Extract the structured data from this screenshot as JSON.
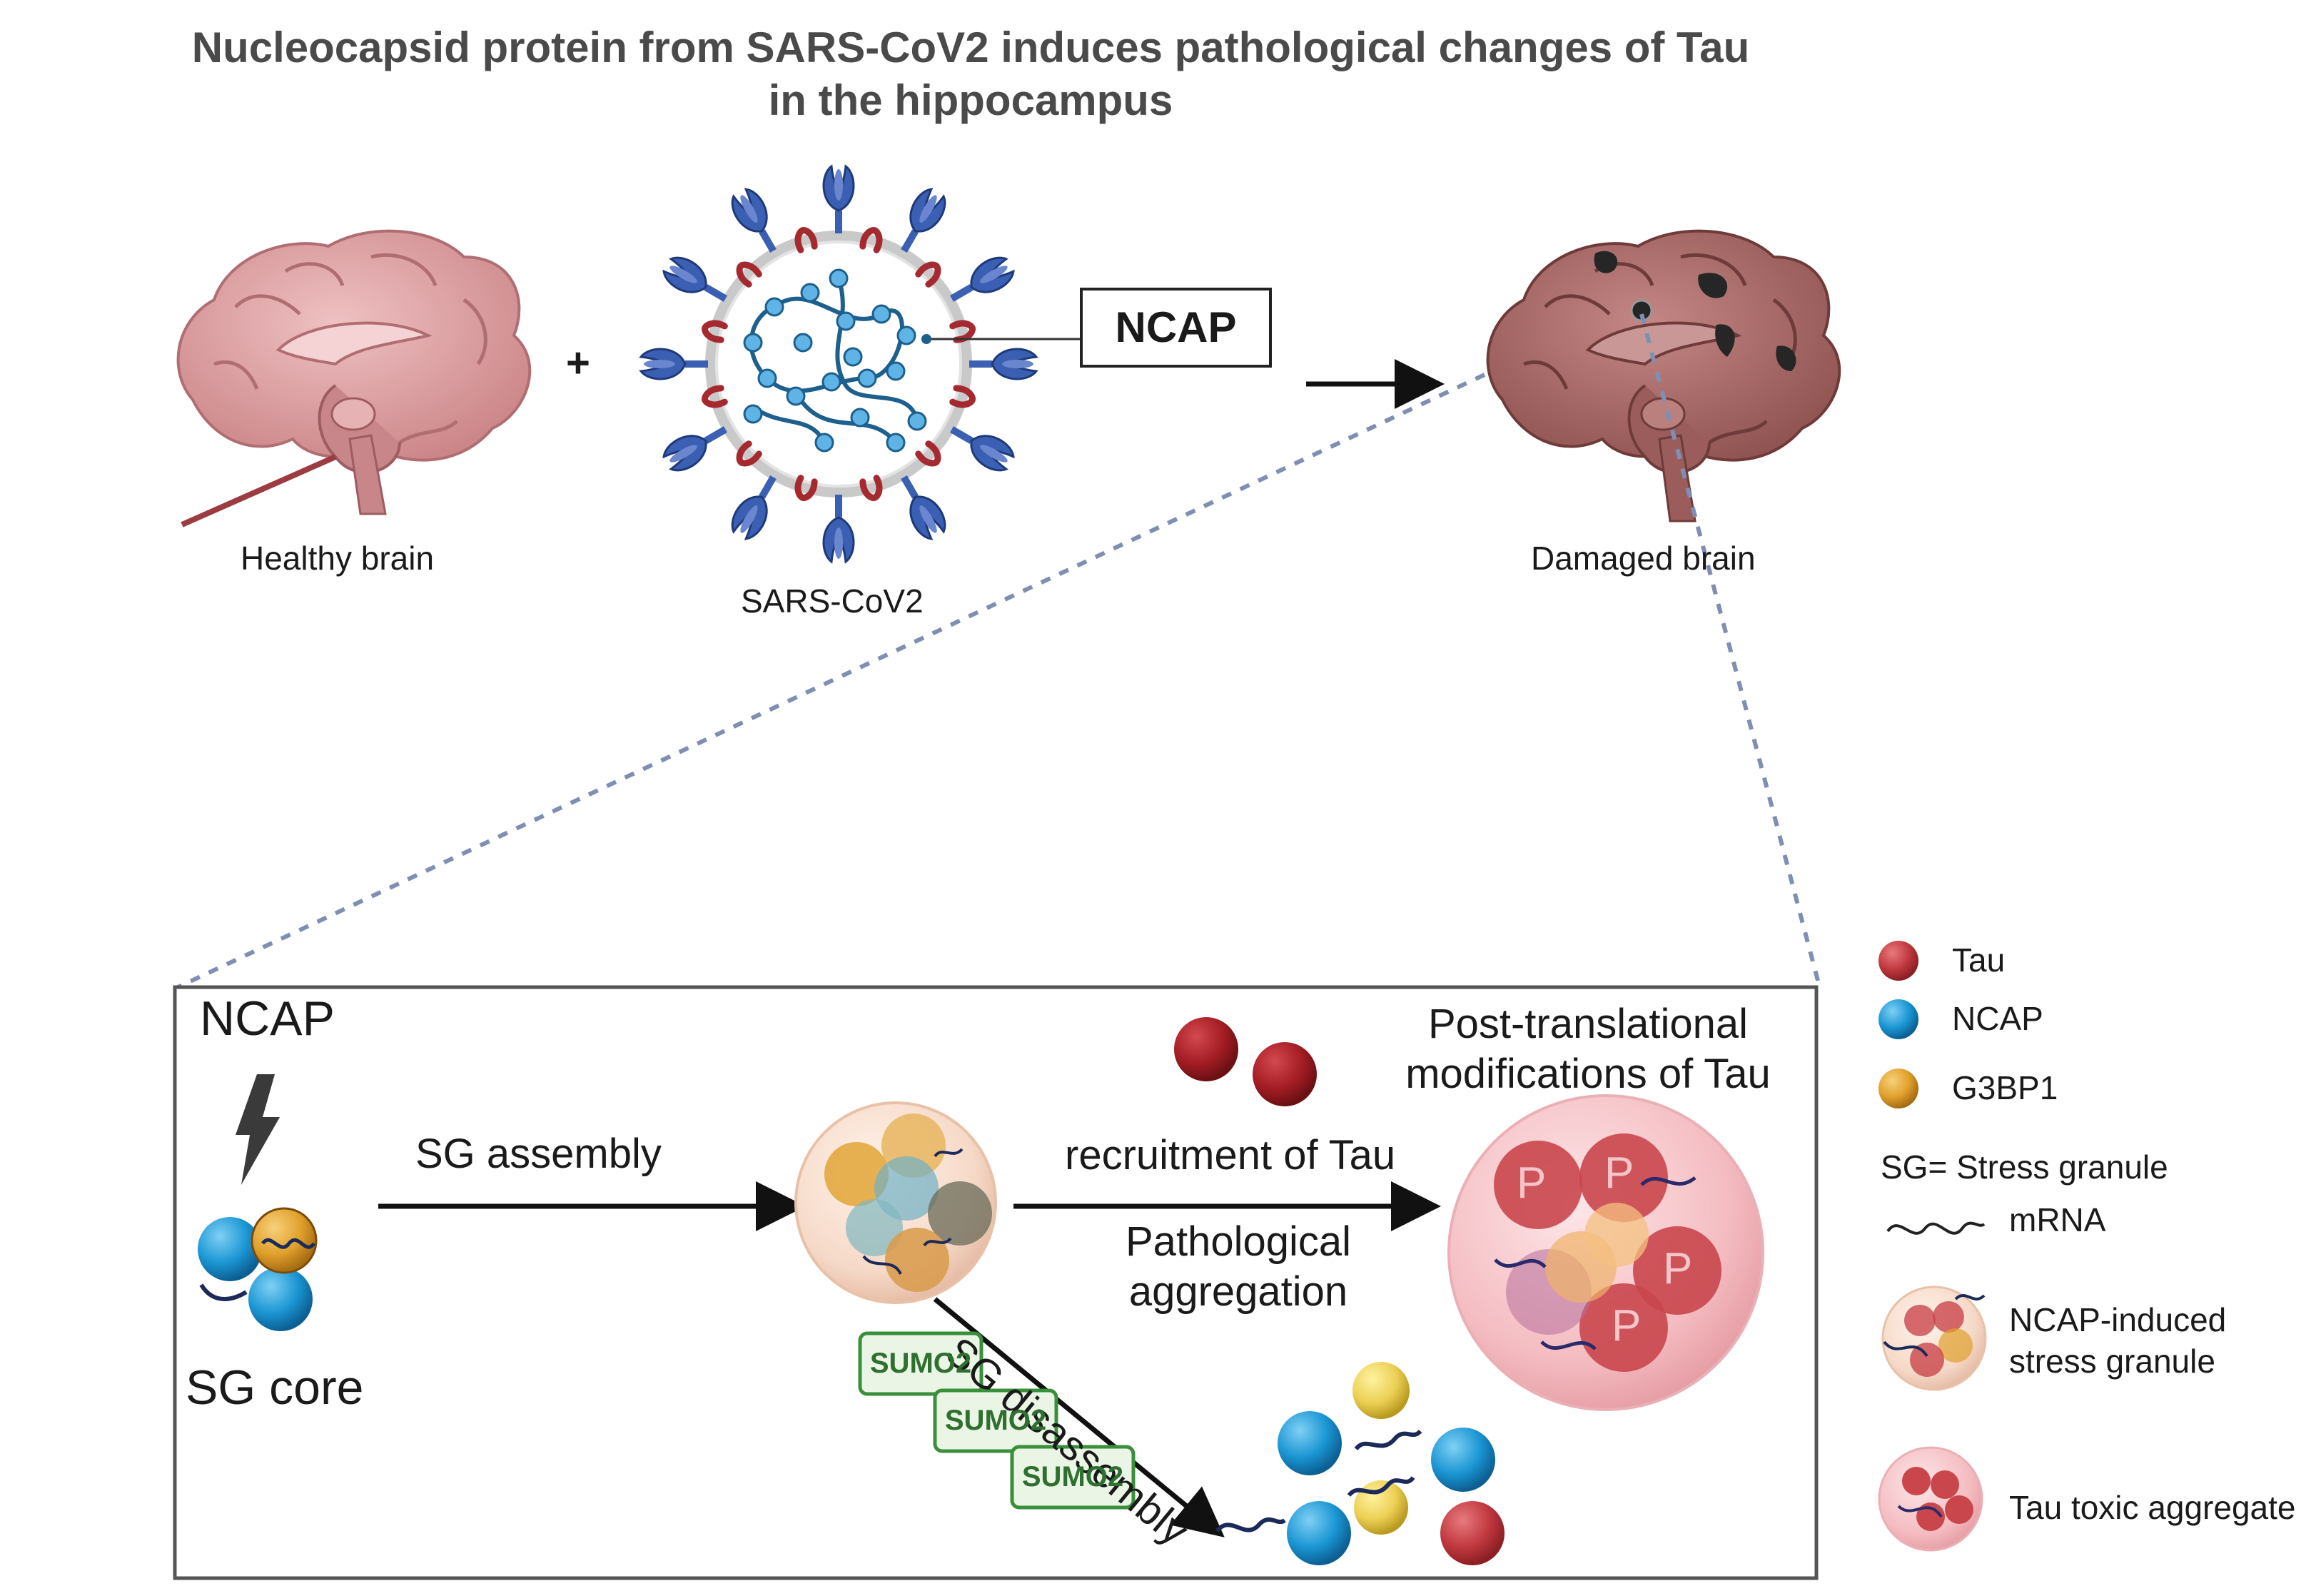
{
  "title": {
    "line1": "Nucleocapsid protein from SARS-CoV2 induces pathological changes of Tau",
    "line2": "in the hippocampus"
  },
  "top": {
    "healthy_brain": "Healthy brain",
    "plus": "+",
    "virus": "SARS-CoV2",
    "ncap_box": "NCAP",
    "damaged_brain": "Damaged brain"
  },
  "inset": {
    "ncap": "NCAP",
    "sg_core": "SG core",
    "sg_assembly": "SG assembly",
    "recruitment": "recruitment of Tau",
    "pathological_line1": "Pathological",
    "pathological_line2": "aggregation",
    "ptm_line1": "Post-translational",
    "ptm_line2": "modifications of Tau",
    "sg_disassembly": "SG disassembly",
    "sumo": [
      "SUMO2",
      "SUMO2",
      "SUMO2"
    ],
    "p_label": "P"
  },
  "legend": {
    "tau": "Tau",
    "ncap": "NCAP",
    "g3bp1": "G3BP1",
    "sg_def": "SG= Stress granule",
    "mrna": "mRNA",
    "ncap_sg_line1": "NCAP-induced",
    "ncap_sg_line2": "stress granule",
    "tau_agg": "Tau toxic aggregate"
  },
  "colors": {
    "tau": "#c0393f",
    "ncap": "#1b96d3",
    "g3bp1": "#e0a02c",
    "sumo_green": "#3a8f3a",
    "brain_healthy": "#d99fa2",
    "brain_damaged": "#a86a68",
    "dashed": "#7f8fb3"
  }
}
